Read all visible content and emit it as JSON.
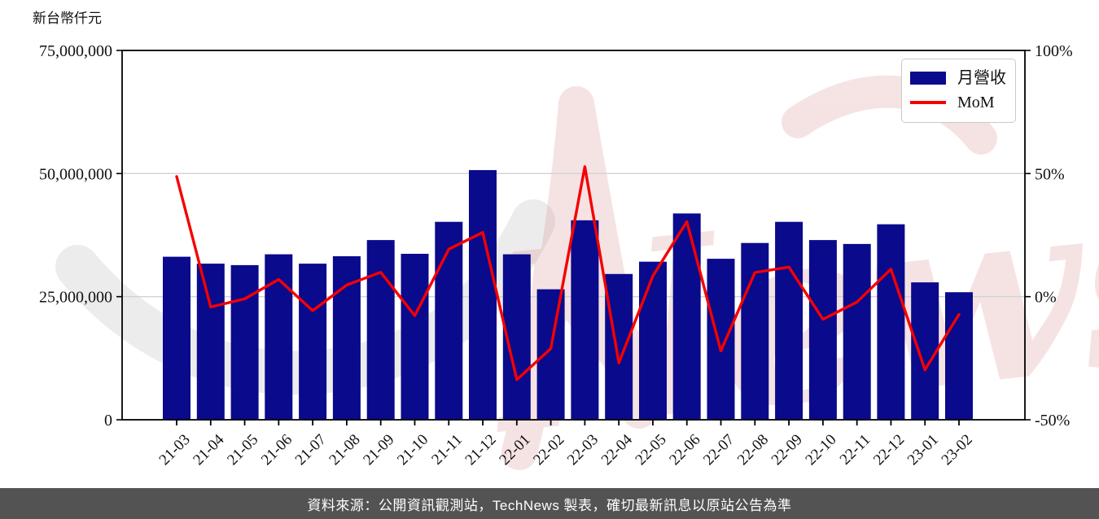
{
  "chart": {
    "y_axis_title": "新台幣仟元",
    "watermark_text": "News"
  },
  "chart_data": {
    "type": "bar+line",
    "title": "",
    "categories": [
      "21-03",
      "21-04",
      "21-05",
      "21-06",
      "21-07",
      "21-08",
      "21-09",
      "21-10",
      "21-11",
      "21-12",
      "22-01",
      "22-02",
      "22-03",
      "22-04",
      "22-05",
      "22-06",
      "22-07",
      "22-08",
      "22-09",
      "22-10",
      "22-11",
      "22-12",
      "23-01",
      "23-02"
    ],
    "series": [
      {
        "name": "月營收",
        "type": "bar",
        "axis": "left",
        "unit": "新台幣仟元",
        "color": "#0a0a8c",
        "values": [
          33100000,
          31700000,
          31400000,
          33600000,
          31700000,
          33200000,
          36500000,
          33700000,
          40200000,
          50700000,
          33600000,
          26500000,
          40500000,
          29600000,
          32100000,
          41900000,
          32700000,
          35900000,
          40200000,
          36500000,
          35700000,
          39700000,
          27900000,
          25900000
        ]
      },
      {
        "name": "MoM",
        "type": "line",
        "axis": "right",
        "unit": "%",
        "color": "#f50000",
        "values": [
          48.8,
          -4.2,
          -0.9,
          7.0,
          -5.7,
          4.7,
          9.9,
          -7.7,
          19.3,
          26.1,
          -33.7,
          -21.1,
          52.8,
          -26.9,
          8.4,
          30.5,
          -22.0,
          9.8,
          12.0,
          -9.2,
          -2.2,
          11.2,
          -29.7,
          -7.2
        ]
      }
    ],
    "left_axis": {
      "label": "新台幣仟元",
      "min": 0,
      "max": 75000000,
      "tick_values": [
        0,
        25000000,
        50000000,
        75000000
      ],
      "tick_labels": [
        "0",
        "25,000,000",
        "50,000,000",
        "75,000,000"
      ]
    },
    "right_axis": {
      "min": -50,
      "max": 100,
      "tick_values": [
        -50,
        0,
        50,
        100
      ],
      "tick_labels": [
        "-50%",
        "0%",
        "50%",
        "100%"
      ]
    },
    "grid": true,
    "legend_position": "top-right"
  },
  "footer": {
    "text": "資料來源：公開資訊觀測站，TechNews 製表，確切最新訊息以原站公告為準"
  }
}
